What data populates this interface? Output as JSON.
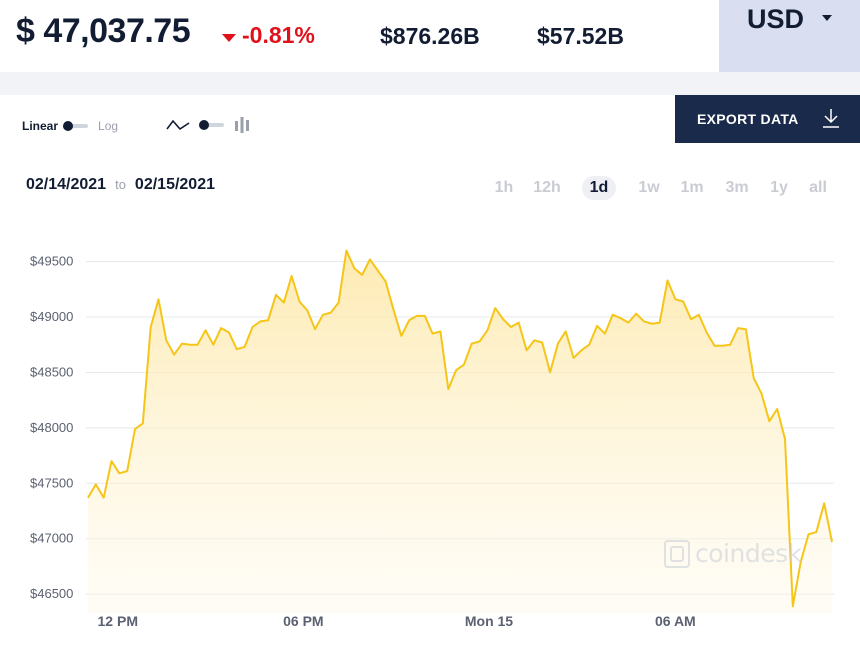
{
  "header": {
    "price": "$ 47,037.75",
    "change": "-0.81%",
    "market_cap": "$876.26B",
    "volume": "$57.52B",
    "currency": "USD"
  },
  "controls": {
    "linear_label": "Linear",
    "log_label": "Log",
    "export_label": "EXPORT DATA",
    "date_from": "02/14/2021",
    "date_to_word": "to",
    "date_to": "02/15/2021",
    "ranges": [
      "1h",
      "12h",
      "1d",
      "1w",
      "1m",
      "3m",
      "1y",
      "all"
    ],
    "active_range": "1d"
  },
  "watermark": "coindesk",
  "colors": {
    "line": "#f5c518",
    "negative": "#e0111b",
    "button_bg": "#1a2a4a",
    "currency_bg": "#d9def0"
  },
  "chart_data": {
    "type": "area",
    "title": "",
    "xlabel": "",
    "ylabel": "",
    "x_ticks": [
      {
        "label": "12 PM",
        "index": 3.8
      },
      {
        "label": "06 PM",
        "index": 27.5
      },
      {
        "label": "Mon 15",
        "index": 51.2
      },
      {
        "label": "06 AM",
        "index": 75.0
      }
    ],
    "y_ticks": [
      46500,
      47000,
      47500,
      48000,
      48500,
      49000,
      49500
    ],
    "y_tick_labels": [
      "$46500",
      "$47000",
      "$47500",
      "$48000",
      "$48500",
      "$49000",
      "$49500"
    ],
    "ylim": [
      46330,
      49830
    ],
    "grid": true,
    "series": [
      {
        "values": [
          47370,
          47490,
          47370,
          47700,
          47590,
          47610,
          47990,
          48040,
          48910,
          49160,
          48790,
          48660,
          48760,
          48750,
          48750,
          48880,
          48750,
          48900,
          48860,
          48710,
          48730,
          48910,
          48960,
          48970,
          49200,
          49130,
          49370,
          49140,
          49060,
          48890,
          49020,
          49040,
          49130,
          49600,
          49440,
          49380,
          49520,
          49420,
          49320,
          49070,
          48830,
          48970,
          49010,
          49010,
          48850,
          48870,
          48350,
          48520,
          48570,
          48760,
          48780,
          48880,
          49080,
          48980,
          48910,
          48950,
          48700,
          48790,
          48770,
          48500,
          48760,
          48870,
          48630,
          48700,
          48750,
          48920,
          48850,
          49020,
          48990,
          48950,
          49030,
          48960,
          48940,
          48950,
          49330,
          49160,
          49140,
          48980,
          49020,
          48860,
          48740,
          48740,
          48750,
          48900,
          48890,
          48450,
          48310,
          48060,
          48170,
          47900,
          46390,
          46790,
          47040,
          47060,
          47320,
          46970
        ]
      }
    ]
  }
}
